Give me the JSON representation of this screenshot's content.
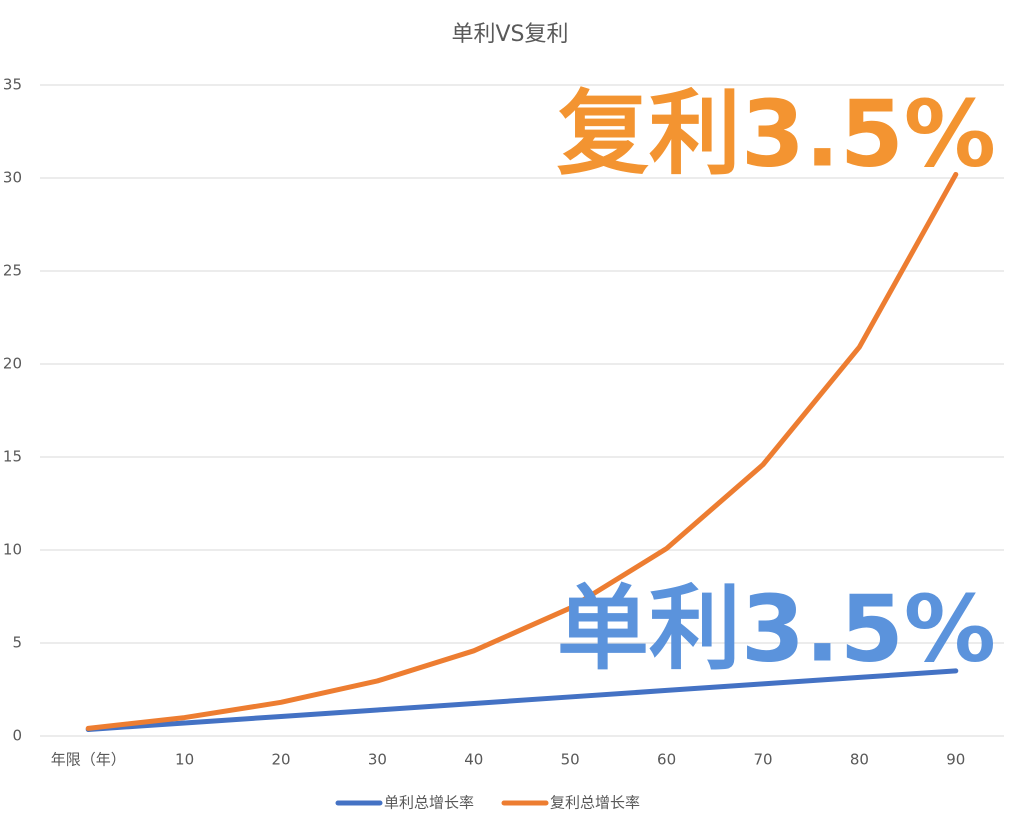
{
  "chart_data": {
    "type": "line",
    "title": "单利VS复利",
    "categories": [
      "年限（年）",
      "10",
      "20",
      "30",
      "40",
      "50",
      "60",
      "70",
      "80",
      "90"
    ],
    "series": [
      {
        "name": "单利总增长率",
        "color": "#4472c4",
        "values": [
          0.35,
          0.7,
          1.05,
          1.4,
          1.75,
          2.1,
          2.45,
          2.8,
          3.15,
          3.5
        ]
      },
      {
        "name": "复利总增长率",
        "color": "#ed7d31",
        "values": [
          0.41,
          0.99,
          1.81,
          2.96,
          4.58,
          6.88,
          10.08,
          14.59,
          20.91,
          30.19
        ]
      }
    ],
    "ylim": [
      0,
      35
    ],
    "yticks": [
      0,
      5,
      10,
      15,
      20,
      25,
      30,
      35
    ],
    "grid": true,
    "legend": "bottom",
    "annotations": [
      {
        "text": "复利3.5%",
        "color": "#f39431"
      },
      {
        "text": "单利3.5%",
        "color": "#5b93dc"
      }
    ]
  }
}
